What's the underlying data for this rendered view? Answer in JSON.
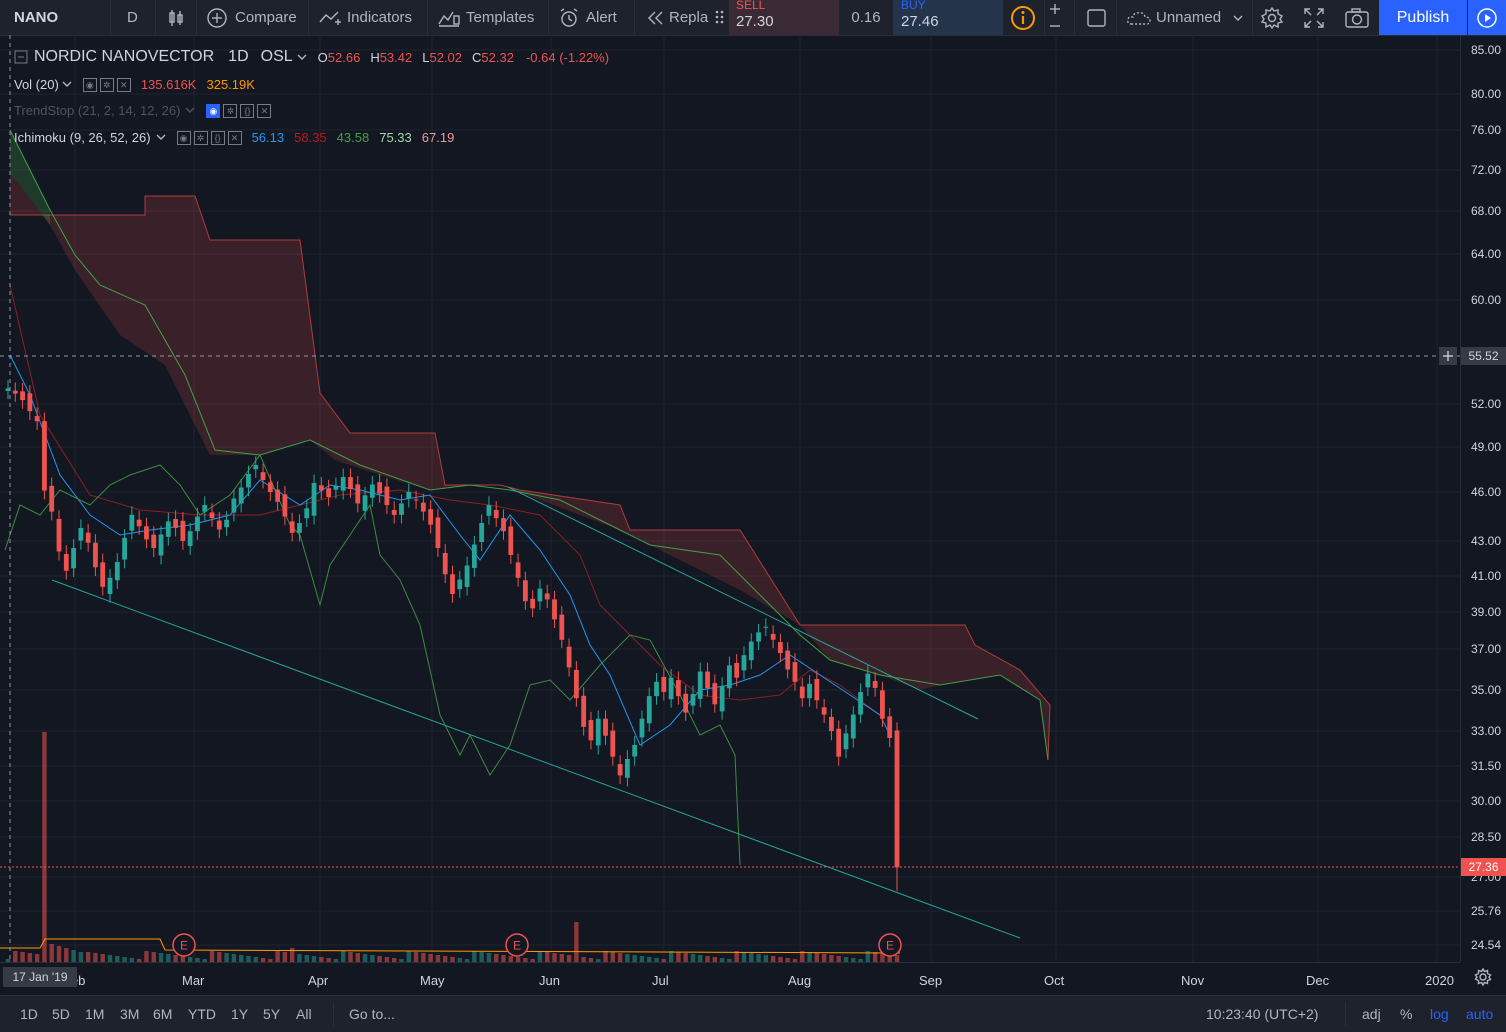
{
  "toolbar": {
    "symbol": "NANO",
    "interval": "D",
    "compare": "Compare",
    "indicators": "Indicators",
    "templates": "Templates",
    "alert": "Alert",
    "replay": "Repla",
    "unnamed": "Unnamed",
    "publish": "Publish"
  },
  "trade": {
    "sell_label": "SELL",
    "sell_price": "27.30",
    "spread": "0.16",
    "buy_label": "BUY",
    "buy_price": "27.46"
  },
  "legend": {
    "title": "NORDIC NANOVECTOR",
    "interval": "1D",
    "exchange": "OSL",
    "open_label": "O",
    "open": "52.66",
    "high_label": "H",
    "high": "53.42",
    "low_label": "L",
    "low": "52.02",
    "close_label": "C",
    "close": "52.32",
    "change": "-0.64 (-1.22%)",
    "vol_name": "Vol (20)",
    "vol_1": "135.616K",
    "vol_2": "325.19K",
    "trendstop": "TrendStop (21, 2, 14, 12, 26)",
    "ichimoku": "Ichimoku (9, 26, 52, 26)",
    "ichi_1": "56.13",
    "ichi_2": "58.35",
    "ichi_3": "43.58",
    "ichi_4": "75.33",
    "ichi_5": "67.19"
  },
  "price_axis": [
    "85.00",
    "80.00",
    "76.00",
    "72.00",
    "68.00",
    "64.00",
    "60.00",
    "52.00",
    "49.00",
    "46.00",
    "43.00",
    "41.00",
    "39.00",
    "37.00",
    "35.00",
    "33.00",
    "31.50",
    "30.00",
    "28.50",
    "27.00",
    "25.76",
    "24.54"
  ],
  "crosshair_price": "55.52",
  "last_price": "27.36",
  "time_axis": [
    "Feb",
    "Mar",
    "Apr",
    "May",
    "Jun",
    "Jul",
    "Aug",
    "Sep",
    "Oct",
    "Nov",
    "Dec",
    "2020"
  ],
  "crosshair_date": "17 Jan '19",
  "earnings_marker": "E",
  "bottom": {
    "periods": [
      "1D",
      "5D",
      "1M",
      "3M",
      "6M",
      "YTD",
      "1Y",
      "5Y",
      "All"
    ],
    "goto": "Go to...",
    "clock": "10:23:40 (UTC+2)",
    "adj": "adj",
    "percent": "%",
    "log": "log",
    "auto": "auto"
  },
  "colors": {
    "background": "#131722",
    "up": "#26a69a",
    "down": "#ef5350",
    "accent": "#2962ff",
    "conversion": "#2196f3",
    "lagging": "#43a047"
  },
  "chart_data": {
    "type": "candlestick",
    "y_ticks": [
      85,
      80,
      76,
      72,
      68,
      64,
      60,
      52,
      49,
      46,
      43,
      41,
      39,
      37,
      35,
      33,
      31.5,
      30,
      28.5,
      27,
      25.76,
      24.54
    ],
    "x_ticks": [
      "Feb",
      "Mar",
      "Apr",
      "May",
      "Jun",
      "Jul",
      "Aug",
      "Sep",
      "Oct",
      "Nov",
      "Dec",
      "2020"
    ],
    "last_price": 27.36,
    "crosshair_price": 55.52,
    "ohlc_shown": {
      "open": 52.66,
      "high": 53.42,
      "low": 52.02,
      "close": 52.32
    }
  }
}
